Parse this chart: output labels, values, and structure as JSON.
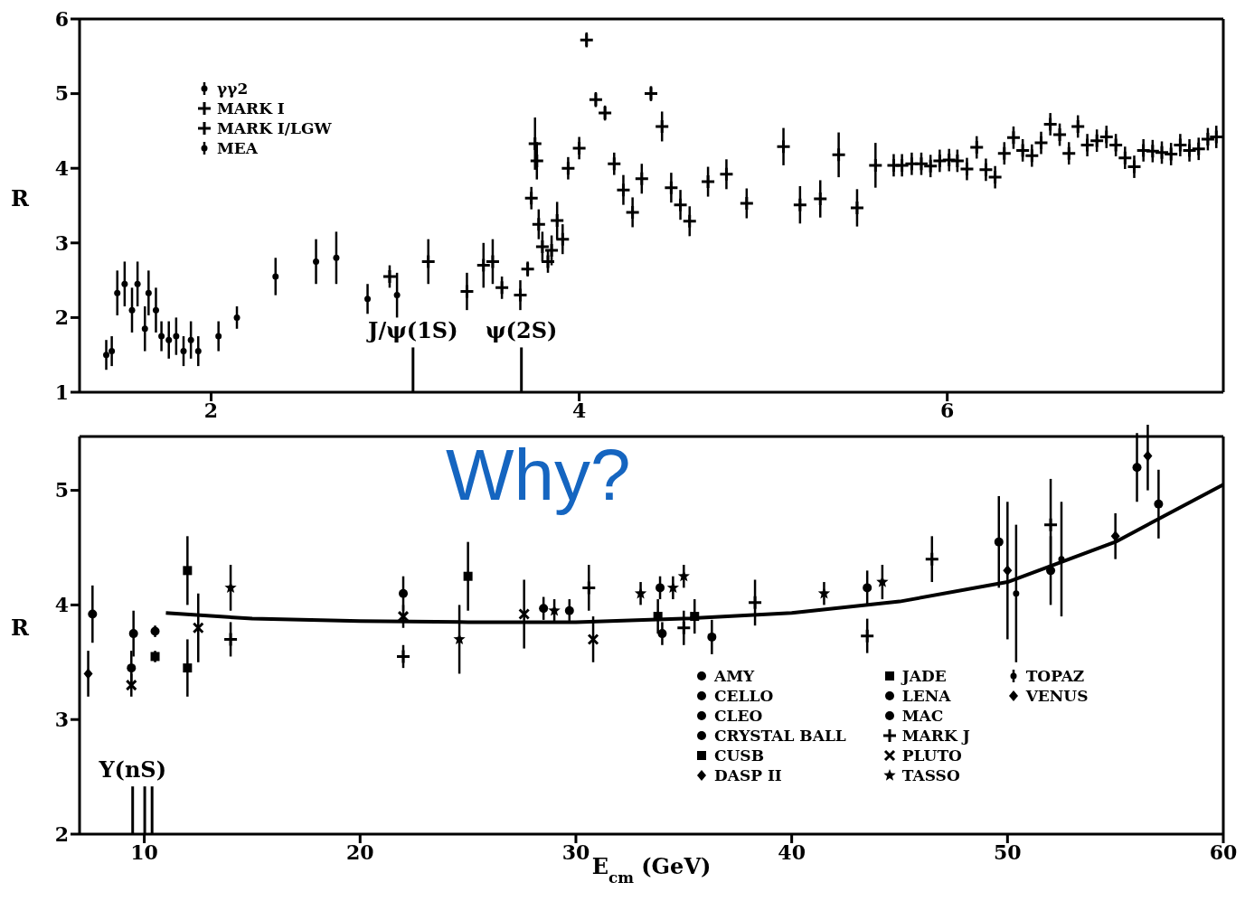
{
  "chart_data": [
    {
      "type": "scatter",
      "ylabel": "R",
      "xlim": [
        1.285,
        7.5
      ],
      "ylim": [
        1,
        6
      ],
      "xticks": [
        2,
        4,
        6
      ],
      "yticks": [
        1,
        2,
        3,
        4,
        5,
        6
      ],
      "legend": "top left",
      "ref_lines": [
        {
          "axis": "x",
          "value": 3.097,
          "label": "J/ψ(1S)"
        },
        {
          "axis": "x",
          "value": 3.686,
          "label": "ψ(2S)"
        }
      ],
      "series": [
        {
          "name": "γγ2",
          "color": "#000000",
          "x": [
            1.43,
            1.49,
            1.57,
            1.64,
            1.66,
            1.7,
            1.77,
            1.81,
            1.85,
            1.89,
            1.93,
            2.04,
            2.14,
            2.35,
            2.57,
            2.68,
            2.85,
            3.01
          ],
          "values": [
            1.5,
            2.33,
            2.1,
            1.85,
            2.33,
            2.1,
            1.7,
            1.75,
            1.55,
            1.7,
            1.55,
            1.75,
            2.0,
            2.55,
            2.75,
            2.8,
            2.25,
            2.3
          ],
          "errors": [
            0.2,
            0.3,
            0.3,
            0.3,
            0.3,
            0.3,
            0.25,
            0.25,
            0.2,
            0.25,
            0.2,
            0.2,
            0.15,
            0.25,
            0.3,
            0.35,
            0.2,
            0.3
          ]
        },
        {
          "name": "MARK I",
          "color": "#000000",
          "marker": "cross",
          "x": [
            2.97,
            3.18,
            3.39,
            3.48,
            3.53,
            3.58,
            3.68,
            3.72,
            3.74,
            3.76,
            3.77,
            3.78,
            3.8,
            3.83,
            3.85,
            3.88,
            3.91,
            3.94,
            4.0,
            4.04,
            4.09,
            4.14,
            4.19,
            4.24,
            4.29,
            4.34,
            4.39,
            4.45,
            4.5,
            4.55,
            4.6,
            4.7,
            4.8,
            4.91,
            5.11,
            5.2,
            5.31,
            5.41,
            5.51,
            5.61
          ],
          "values": [
            2.55,
            2.75,
            2.35,
            2.7,
            2.75,
            2.4,
            2.3,
            2.65,
            3.6,
            4.33,
            4.1,
            3.25,
            2.95,
            2.75,
            2.9,
            3.3,
            3.05,
            4.0,
            4.27,
            5.72,
            4.92,
            4.74,
            4.06,
            3.71,
            3.41,
            3.86,
            5.0,
            4.56,
            3.74,
            3.51,
            3.29,
            3.82,
            3.92,
            3.53,
            4.29,
            3.51,
            3.59,
            4.18,
            3.47,
            4.04
          ],
          "errors": [
            0.15,
            0.3,
            0.25,
            0.3,
            0.3,
            0.15,
            0.2,
            0.1,
            0.15,
            0.35,
            0.25,
            0.2,
            0.2,
            0.15,
            0.2,
            0.25,
            0.2,
            0.15,
            0.15,
            0.1,
            0.1,
            0.1,
            0.15,
            0.2,
            0.2,
            0.2,
            0.1,
            0.2,
            0.2,
            0.2,
            0.2,
            0.2,
            0.2,
            0.2,
            0.25,
            0.25,
            0.25,
            0.3,
            0.25,
            0.3
          ]
        },
        {
          "name": "MARK I/LGW",
          "color": "#000000",
          "marker": "cross",
          "x": [
            5.709,
            5.754,
            5.807,
            5.859,
            5.909,
            5.959,
            6.01,
            6.055,
            6.107,
            6.16,
            6.21,
            6.26,
            6.31,
            6.36,
            6.41,
            6.46,
            6.51,
            6.56,
            6.611,
            6.661,
            6.71,
            6.761,
            6.813,
            6.865,
            6.916,
            6.966,
            7.016,
            7.066,
            7.116,
            7.166,
            7.216,
            7.266,
            7.316,
            7.366,
            7.416,
            7.462
          ],
          "values": [
            4.04,
            4.04,
            4.06,
            4.06,
            4.03,
            4.1,
            4.11,
            4.1,
            3.99,
            4.28,
            3.98,
            3.88,
            4.2,
            4.41,
            4.24,
            4.17,
            4.34,
            4.59,
            4.45,
            4.2,
            4.56,
            4.31,
            4.37,
            4.42,
            4.31,
            4.14,
            4.02,
            4.24,
            4.23,
            4.21,
            4.19,
            4.31,
            4.24,
            4.26,
            4.39,
            4.42
          ],
          "errors": [
            0.15,
            0.15,
            0.15,
            0.15,
            0.15,
            0.15,
            0.15,
            0.15,
            0.15,
            0.15,
            0.15,
            0.15,
            0.15,
            0.15,
            0.15,
            0.15,
            0.15,
            0.15,
            0.15,
            0.15,
            0.15,
            0.15,
            0.15,
            0.15,
            0.15,
            0.15,
            0.15,
            0.15,
            0.15,
            0.15,
            0.15,
            0.15,
            0.15,
            0.15,
            0.15,
            0.15
          ]
        },
        {
          "name": "MEA",
          "color": "#000000",
          "x": [
            1.46,
            1.53,
            1.6,
            1.73
          ],
          "values": [
            1.55,
            2.45,
            2.45,
            1.75
          ],
          "errors": [
            0.2,
            0.3,
            0.3,
            0.2
          ]
        }
      ]
    },
    {
      "type": "scatter",
      "ylabel": "R",
      "xlabel": "E$_{cm}$ (GeV)",
      "xlim": [
        7,
        60
      ],
      "ylim": [
        2,
        5.47
      ],
      "xticks": [
        10,
        20,
        30,
        40,
        50,
        60
      ],
      "yticks": [
        2,
        3,
        4,
        5
      ],
      "legend": "bottom right",
      "ref_lines": [
        {
          "axis": "x",
          "value": 9.46,
          "label": "Υ(nS)"
        },
        {
          "axis": "x",
          "value": 10.02
        },
        {
          "axis": "x",
          "value": 10.36
        }
      ],
      "annotations": [
        "Why?"
      ],
      "series": [
        {
          "name": "AMY",
          "color": "#000000",
          "marker": "circle",
          "x": [
            49.6,
            52,
            56,
            57
          ],
          "values": [
            4.55,
            4.3,
            5.2,
            4.88
          ],
          "errors": [
            0.4,
            0.3,
            0.3,
            0.3
          ]
        },
        {
          "name": "CELLO",
          "color": "#000000",
          "marker": "circle",
          "x": [
            22,
            28.5,
            34,
            43.5,
            36.3
          ],
          "values": [
            4.1,
            3.97,
            3.75,
            4.15,
            3.72
          ],
          "errors": [
            0.15,
            0.1,
            0.1,
            0.15,
            0.15
          ]
        },
        {
          "name": "CLEO",
          "color": "#000000",
          "marker": "circle",
          "x": [
            10.5
          ],
          "values": [
            3.77
          ],
          "errors": [
            0.05
          ]
        },
        {
          "name": "CRYSTAL BALL",
          "color": "#000000",
          "marker": "circle",
          "x": [
            9.4
          ],
          "values": [
            3.45
          ],
          "errors": [
            0.15
          ]
        },
        {
          "name": "CUSB",
          "color": "#000000",
          "marker": "square",
          "x": [
            10.5
          ],
          "values": [
            3.55
          ],
          "errors": [
            0.05
          ]
        },
        {
          "name": "DASP II",
          "color": "#000000",
          "marker": "diamond",
          "x": [
            7.4
          ],
          "values": [
            3.4
          ],
          "errors": [
            0.2
          ]
        },
        {
          "name": "JADE",
          "color": "#000000",
          "marker": "square",
          "x": [
            12,
            12,
            25,
            33.8,
            35.5
          ],
          "values": [
            3.45,
            4.3,
            4.25,
            3.9,
            3.9
          ],
          "errors": [
            0.25,
            0.3,
            0.3,
            0.15,
            0.15
          ]
        },
        {
          "name": "LENA",
          "color": "#000000",
          "marker": "circle",
          "x": [
            7.6,
            9.5
          ],
          "values": [
            3.92,
            3.75
          ],
          "errors": [
            0.25,
            0.2
          ]
        },
        {
          "name": "MAC",
          "color": "#000000",
          "marker": "circle",
          "x": [
            29.7,
            33.9
          ],
          "values": [
            3.95,
            4.15
          ],
          "errors": [
            0.1,
            0.1
          ]
        },
        {
          "name": "MARK J",
          "color": "#000000",
          "marker": "cross",
          "x": [
            14,
            22,
            30.6,
            35,
            38.3,
            43.5,
            46.5,
            52
          ],
          "values": [
            3.7,
            3.55,
            4.15,
            3.8,
            4.02,
            3.73,
            4.4,
            4.7
          ],
          "errors": [
            0.15,
            0.1,
            0.2,
            0.15,
            0.2,
            0.15,
            0.2,
            0.4
          ]
        },
        {
          "name": "PLUTO",
          "color": "#000000",
          "marker": "x",
          "x": [
            9.4,
            12.5,
            22,
            27.6,
            30.8
          ],
          "values": [
            3.3,
            3.8,
            3.9,
            3.92,
            3.7
          ],
          "errors": [
            0.1,
            0.3,
            0.1,
            0.3,
            0.2
          ]
        },
        {
          "name": "TASSO",
          "color": "#000000",
          "marker": "star",
          "x": [
            14,
            24.6,
            29,
            33,
            34.5,
            35,
            41.5,
            44.2
          ],
          "values": [
            4.15,
            3.7,
            3.95,
            4.1,
            4.15,
            4.25,
            4.1,
            4.2
          ],
          "errors": [
            0.2,
            0.3,
            0.1,
            0.1,
            0.1,
            0.1,
            0.1,
            0.15
          ]
        },
        {
          "name": "TOPAZ",
          "color": "#000000",
          "x": [
            50.4,
            52.5
          ],
          "values": [
            4.1,
            4.4
          ],
          "errors": [
            0.6,
            0.5
          ]
        },
        {
          "name": "VENUS",
          "color": "#000000",
          "marker": "diamond",
          "x": [
            50,
            55,
            56.5
          ],
          "values": [
            4.3,
            4.6,
            5.3
          ],
          "errors": [
            0.6,
            0.2,
            0.3
          ]
        },
        {
          "type": "line",
          "color": "#000000",
          "marker": "none",
          "x": [
            11,
            15,
            20,
            25,
            30,
            35,
            40,
            45,
            50,
            55,
            60
          ],
          "values": [
            3.93,
            3.88,
            3.86,
            3.85,
            3.85,
            3.88,
            3.93,
            4.03,
            4.2,
            4.55,
            5.05
          ]
        }
      ]
    }
  ]
}
